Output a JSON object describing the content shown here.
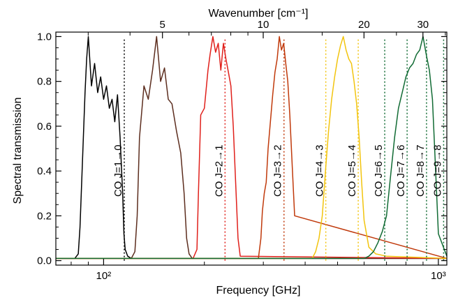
{
  "chart_data": {
    "type": "line",
    "x_scale": "log",
    "xlabel": "Frequency [GHz]",
    "x2label": "Wavenumber [cm⁻¹]",
    "ylabel": "Spectral transmission",
    "xlim": [
      72,
      1060
    ],
    "ylim": [
      -0.02,
      1.02
    ],
    "x_ticks": [
      {
        "value": 100,
        "label": "10²"
      },
      {
        "value": 1000,
        "label": "10³"
      }
    ],
    "x2_ticks": [
      {
        "value": 5,
        "label": "5"
      },
      {
        "value": 10,
        "label": "10"
      },
      {
        "value": 20,
        "label": "20"
      },
      {
        "value": 30,
        "label": "30"
      }
    ],
    "y_ticks": [
      0.0,
      0.2,
      0.4,
      0.6,
      0.8,
      1.0
    ],
    "y_tick_labels": [
      "0.0",
      "0.2",
      "0.4",
      "0.6",
      "0.8",
      "1.0"
    ],
    "grid": false,
    "series": [
      {
        "color": "#000000",
        "x": [
          72,
          82,
          84,
          85,
          86,
          87,
          88,
          89,
          90,
          92,
          94,
          96,
          98,
          100,
          102,
          104,
          106,
          108,
          110,
          112,
          114,
          115,
          116,
          118,
          121,
          1060
        ],
        "y": [
          0.01,
          0.01,
          0.03,
          0.15,
          0.35,
          0.55,
          0.75,
          0.9,
          1.0,
          0.78,
          0.88,
          0.75,
          0.82,
          0.72,
          0.78,
          0.68,
          0.72,
          0.62,
          0.74,
          0.55,
          0.3,
          0.12,
          0.05,
          0.02,
          0.01,
          0.01
        ]
      },
      {
        "color": "#5c2d1e",
        "x": [
          72,
          121,
          124,
          126,
          128,
          132,
          136,
          140,
          144,
          148,
          152,
          156,
          160,
          165,
          170,
          174,
          177,
          180,
          184,
          1060
        ],
        "y": [
          0.01,
          0.01,
          0.04,
          0.2,
          0.55,
          0.78,
          0.72,
          0.85,
          1.0,
          0.8,
          0.86,
          0.72,
          0.7,
          0.58,
          0.48,
          0.3,
          0.1,
          0.03,
          0.01,
          0.01
        ]
      },
      {
        "color": "#e0201b",
        "x": [
          72,
          185,
          190,
          192,
          195,
          200,
          205,
          208,
          212,
          216,
          220,
          224,
          228,
          232,
          236,
          240,
          244,
          248,
          252,
          256,
          1060
        ],
        "y": [
          0.01,
          0.01,
          0.05,
          0.3,
          0.65,
          0.68,
          0.85,
          0.92,
          1.0,
          0.93,
          0.97,
          0.85,
          0.97,
          0.9,
          0.84,
          0.78,
          0.6,
          0.35,
          0.1,
          0.02,
          0.01
        ]
      },
      {
        "color": "#c0390b",
        "x": [
          72,
          290,
          295,
          298,
          302,
          306,
          310,
          315,
          320,
          325,
          330,
          335,
          340,
          345,
          350,
          355,
          360,
          366,
          372,
          1060
        ],
        "y": [
          0.01,
          0.01,
          0.1,
          0.22,
          0.3,
          0.35,
          0.5,
          0.62,
          0.74,
          0.84,
          0.9,
          1.0,
          0.94,
          0.97,
          0.88,
          0.8,
          0.65,
          0.42,
          0.2,
          0.01
        ]
      },
      {
        "color": "#f2c40e",
        "x": [
          72,
          420,
          430,
          440,
          450,
          460,
          470,
          480,
          490,
          500,
          510,
          520,
          530,
          540,
          550,
          560,
          570,
          580,
          590,
          600,
          620,
          650,
          700,
          1060
        ],
        "y": [
          0.01,
          0.01,
          0.04,
          0.1,
          0.2,
          0.4,
          0.58,
          0.72,
          0.82,
          0.9,
          0.96,
          1.0,
          0.94,
          0.9,
          0.88,
          0.8,
          0.7,
          0.55,
          0.35,
          0.18,
          0.06,
          0.03,
          0.02,
          0.01
        ]
      },
      {
        "color": "#116b34",
        "x": [
          72,
          600,
          620,
          640,
          660,
          680,
          700,
          720,
          740,
          760,
          780,
          800,
          820,
          840,
          860,
          880,
          900,
          920,
          940,
          960,
          980,
          1000,
          1060
        ],
        "y": [
          0.01,
          0.01,
          0.02,
          0.04,
          0.08,
          0.13,
          0.2,
          0.38,
          0.55,
          0.68,
          0.75,
          0.82,
          0.86,
          0.88,
          0.92,
          0.94,
          1.0,
          0.92,
          0.85,
          0.72,
          0.42,
          0.12,
          0.02
        ]
      }
    ],
    "annotations": [
      {
        "label": "CO J=1→0",
        "x": 115.27,
        "color": "#000000"
      },
      {
        "label": "CO J=2→1",
        "x": 230.54,
        "color": "#e0201b"
      },
      {
        "label": "CO J=3→2",
        "x": 345.8,
        "color": "#c0390b"
      },
      {
        "label": "CO J=4→3",
        "x": 461.04,
        "color": "#f2c40e"
      },
      {
        "label": "CO J=5→4",
        "x": 576.27,
        "color": "#f2c40e"
      },
      {
        "label": "CO J=6→5",
        "x": 691.47,
        "color": "#116b34"
      },
      {
        "label": "CO J=7→6",
        "x": 806.65,
        "color": "#116b34"
      },
      {
        "label": "CO J=8→7",
        "x": 921.8,
        "color": "#116b34"
      },
      {
        "label": "CO J=9→8",
        "x": 1036.9,
        "color": "#116b34"
      }
    ]
  }
}
